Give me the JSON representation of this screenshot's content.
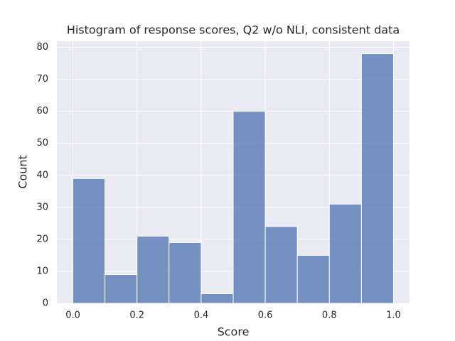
{
  "chart_data": {
    "type": "histogram",
    "title": "Histogram of response scores, Q2 w/o NLI, consistent data",
    "xlabel": "Score",
    "ylabel": "Count",
    "bins": [
      0,
      0.1,
      0.2,
      0.3,
      0.4,
      0.5,
      0.6,
      0.7,
      0.8,
      0.9,
      1
    ],
    "values": [
      39,
      9,
      21,
      19,
      3,
      60,
      24,
      15,
      31,
      78
    ],
    "color": "#4c72b0",
    "xlim": [
      -0.05,
      1.05
    ],
    "ylim": [
      0,
      81.9
    ],
    "xticks": [
      {
        "value": 0,
        "label": "0.0"
      },
      0.2,
      0.4,
      0.6,
      0.8,
      {
        "value": 1,
        "label": "1.0"
      }
    ],
    "yticks": [
      0,
      10,
      20,
      30,
      40,
      50,
      60,
      70,
      80
    ],
    "grid": true
  }
}
